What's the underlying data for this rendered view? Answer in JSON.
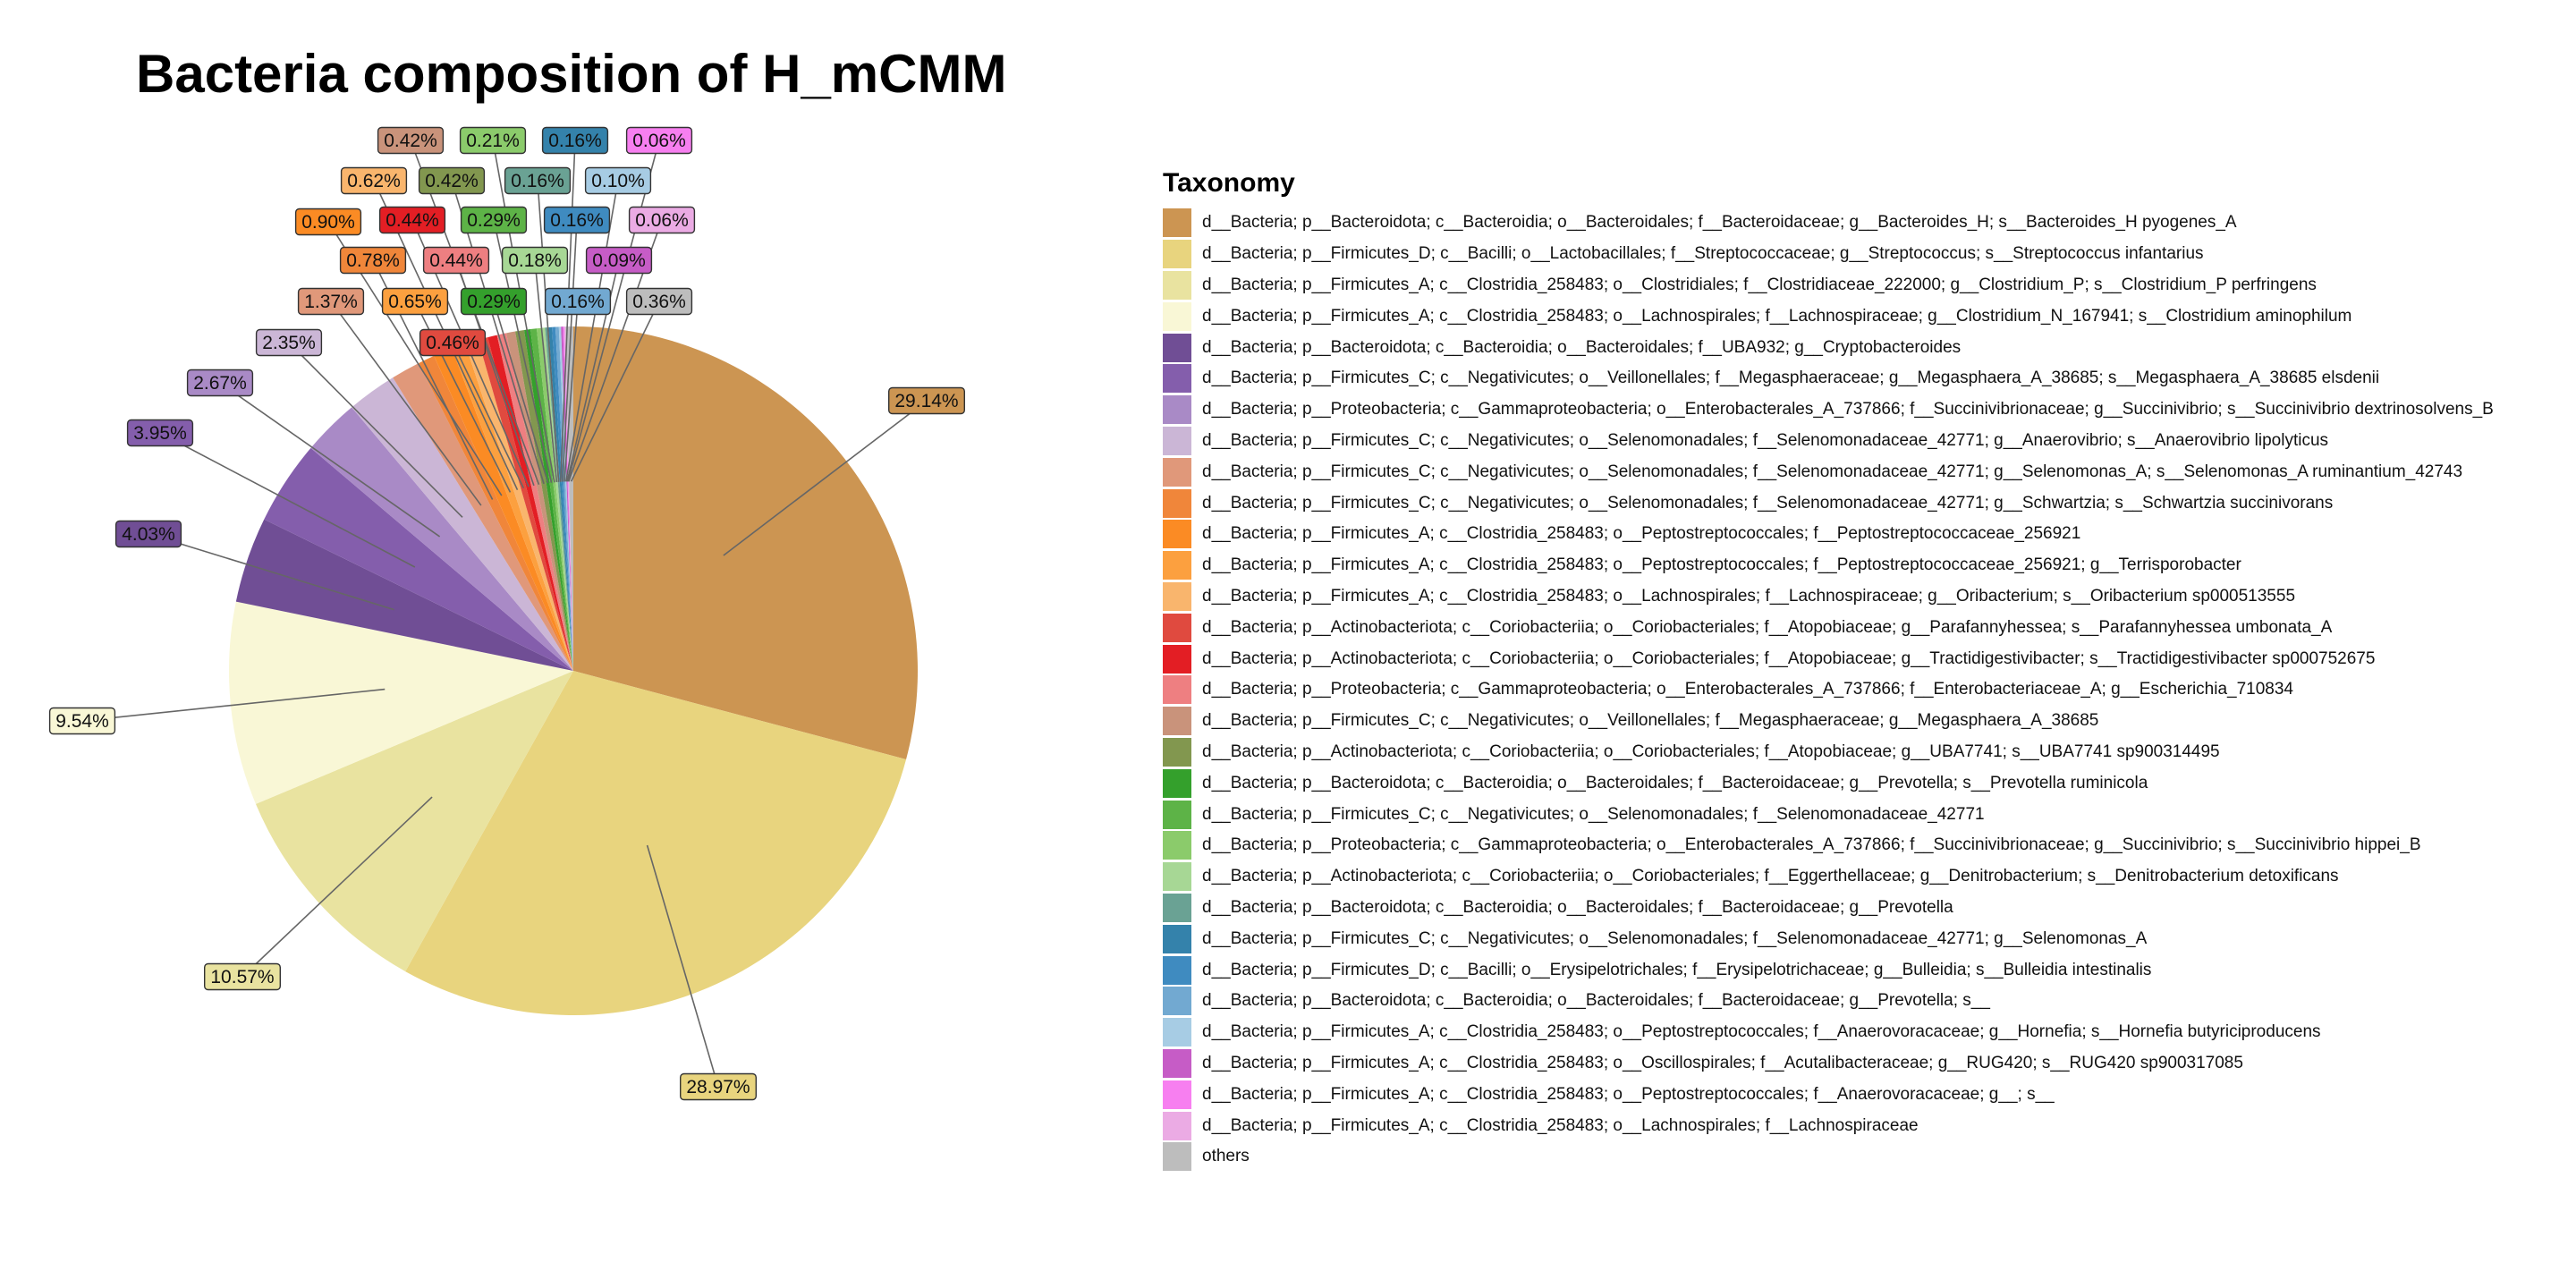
{
  "chart_data": {
    "type": "pie",
    "title": "Bacteria composition of H_mCMM",
    "legend_title": "Taxonomy",
    "legend_position": "right",
    "slices": [
      {
        "label": "d__Bacteria; p__Bacteroidota; c__Bacteroidia; o__Bacteroidales; f__Bacteroidaceae; g__Bacteroides_H; s__Bacteroides_H pyogenes_A",
        "value": 29.14,
        "display": "29.14%",
        "color": "#CC9552"
      },
      {
        "label": "d__Bacteria; p__Firmicutes_D; c__Bacilli; o__Lactobacillales; f__Streptococcaceae; g__Streptococcus; s__Streptococcus infantarius",
        "value": 28.97,
        "display": "28.97%",
        "color": "#E8D47E"
      },
      {
        "label": "d__Bacteria; p__Firmicutes_A; c__Clostridia_258483; o__Clostridiales; f__Clostridiaceae_222000; g__Clostridium_P; s__Clostridium_P perfringens",
        "value": 10.57,
        "display": "10.57%",
        "color": "#E9E3A0"
      },
      {
        "label": "d__Bacteria; p__Firmicutes_A; c__Clostridia_258483; o__Lachnospirales; f__Lachnospiraceae; g__Clostridium_N_167941; s__Clostridium aminophilum",
        "value": 9.54,
        "display": "9.54%",
        "color": "#F9F7D6"
      },
      {
        "label": "d__Bacteria; p__Bacteroidota; c__Bacteroidia; o__Bacteroidales; f__UBA932; g__Cryptobacteroides",
        "value": 4.03,
        "display": "4.03%",
        "color": "#704E95"
      },
      {
        "label": "d__Bacteria; p__Firmicutes_C; c__Negativicutes; o__Veillonellales; f__Megasphaeraceae; g__Megasphaera_A_38685; s__Megasphaera_A_38685 elsdenii",
        "value": 3.95,
        "display": "3.95%",
        "color": "#845EAC"
      },
      {
        "label": "d__Bacteria; p__Proteobacteria; c__Gammaproteobacteria; o__Enterobacterales_A_737866; f__Succinivibrionaceae; g__Succinivibrio; s__Succinivibrio dextrinosolvens_B",
        "value": 2.67,
        "display": "2.67%",
        "color": "#A98AC6"
      },
      {
        "label": "d__Bacteria; p__Firmicutes_C; c__Negativicutes; o__Selenomonadales; f__Selenomonadaceae_42771; g__Anaerovibrio; s__Anaerovibrio lipolyticus",
        "value": 2.35,
        "display": "2.35%",
        "color": "#CBB6D6"
      },
      {
        "label": "d__Bacteria; p__Firmicutes_C; c__Negativicutes; o__Selenomonadales; f__Selenomonadaceae_42771; g__Selenomonas_A; s__Selenomonas_A ruminantium_42743",
        "value": 1.37,
        "display": "1.37%",
        "color": "#E0987A"
      },
      {
        "label": "d__Bacteria; p__Firmicutes_C; c__Negativicutes; o__Selenomonadales; f__Selenomonadaceae_42771; g__Schwartzia; s__Schwartzia succinivorans",
        "value": 0.78,
        "display": "0.78%",
        "color": "#F0863A"
      },
      {
        "label": "d__Bacteria; p__Firmicutes_A; c__Clostridia_258483; o__Peptostreptococcales; f__Peptostreptococcaceae_256921",
        "value": 0.9,
        "display": "0.90%",
        "color": "#FB8B24"
      },
      {
        "label": "d__Bacteria; p__Firmicutes_A; c__Clostridia_258483; o__Peptostreptococcales; f__Peptostreptococcaceae_256921; g__Terrisporobacter",
        "value": 0.65,
        "display": "0.65%",
        "color": "#FCA03F"
      },
      {
        "label": "d__Bacteria; p__Firmicutes_A; c__Clostridia_258483; o__Lachnospirales; f__Lachnospiraceae; g__Oribacterium; s__Oribacterium sp000513555",
        "value": 0.62,
        "display": "0.62%",
        "color": "#F9B56D"
      },
      {
        "label": "d__Bacteria; p__Actinobacteriota; c__Coriobacteriia; o__Coriobacteriales; f__Atopobiaceae; g__Parafannyhessea; s__Parafannyhessea umbonata_A",
        "value": 0.46,
        "display": "0.46%",
        "color": "#E04A3F"
      },
      {
        "label": "d__Bacteria; p__Actinobacteriota; c__Coriobacteriia; o__Coriobacteriales; f__Atopobiaceae; g__Tractidigestivibacter; s__Tractidigestivibacter sp000752675",
        "value": 0.44,
        "display": "0.44%",
        "color": "#E31E24"
      },
      {
        "label": "d__Bacteria; p__Proteobacteria; c__Gammaproteobacteria; o__Enterobacterales_A_737866; f__Enterobacteriaceae_A; g__Escherichia_710834",
        "value": 0.44,
        "display": "0.44%",
        "color": "#EE7F81"
      },
      {
        "label": "d__Bacteria; p__Firmicutes_C; c__Negativicutes; o__Veillonellales; f__Megasphaeraceae; g__Megasphaera_A_38685",
        "value": 0.42,
        "display": "0.42%",
        "color": "#C9937B"
      },
      {
        "label": "d__Bacteria; p__Actinobacteriota; c__Coriobacteriia; o__Coriobacteriales; f__Atopobiaceae; g__UBA7741; s__UBA7741 sp900314495",
        "value": 0.42,
        "display": "0.42%",
        "color": "#82974F"
      },
      {
        "label": "d__Bacteria; p__Bacteroidota; c__Bacteroidia; o__Bacteroidales; f__Bacteroidaceae; g__Prevotella; s__Prevotella ruminicola",
        "value": 0.29,
        "display": "0.29%",
        "color": "#34A02C"
      },
      {
        "label": "d__Bacteria; p__Firmicutes_C; c__Negativicutes; o__Selenomonadales; f__Selenomonadaceae_42771",
        "value": 0.29,
        "display": "0.29%",
        "color": "#5DB347"
      },
      {
        "label": "d__Bacteria; p__Proteobacteria; c__Gammaproteobacteria; o__Enterobacterales_A_737866; f__Succinivibrionaceae; g__Succinivibrio; s__Succinivibrio hippei_B",
        "value": 0.21,
        "display": "0.21%",
        "color": "#8BCB6B"
      },
      {
        "label": "d__Bacteria; p__Actinobacteriota; c__Coriobacteriia; o__Coriobacteriales; f__Eggerthellaceae; g__Denitrobacterium; s__Denitrobacterium detoxificans",
        "value": 0.18,
        "display": "0.18%",
        "color": "#A7D795"
      },
      {
        "label": "d__Bacteria; p__Bacteroidota; c__Bacteroidia; o__Bacteroidales; f__Bacteroidaceae; g__Prevotella",
        "value": 0.16,
        "display": "0.16%",
        "color": "#6AA294"
      },
      {
        "label": "d__Bacteria; p__Firmicutes_C; c__Negativicutes; o__Selenomonadales; f__Selenomonadaceae_42771; g__Selenomonas_A",
        "value": 0.16,
        "display": "0.16%",
        "color": "#3482AB"
      },
      {
        "label": "d__Bacteria; p__Firmicutes_D; c__Bacilli; o__Erysipelotrichales; f__Erysipelotrichaceae; g__Bulleidia; s__Bulleidia intestinalis",
        "value": 0.16,
        "display": "0.16%",
        "color": "#3F8BC0"
      },
      {
        "label": "d__Bacteria; p__Bacteroidota; c__Bacteroidia; o__Bacteroidales; f__Bacteroidaceae; g__Prevotella; s__",
        "value": 0.16,
        "display": "0.16%",
        "color": "#72A9D1"
      },
      {
        "label": "d__Bacteria; p__Firmicutes_A; c__Clostridia_258483; o__Peptostreptococcales; f__Anaerovoracaceae; g__Hornefia; s__Hornefia butyriciproducens",
        "value": 0.1,
        "display": "0.10%",
        "color": "#A7CCE4"
      },
      {
        "label": "d__Bacteria; p__Firmicutes_A; c__Clostridia_258483; o__Oscillospirales; f__Acutalibacteraceae; g__RUG420; s__RUG420 sp900317085",
        "value": 0.09,
        "display": "0.09%",
        "color": "#C65CC6"
      },
      {
        "label": "d__Bacteria; p__Firmicutes_A; c__Clostridia_258483; o__Peptostreptococcales; f__Anaerovoracaceae; g__; s__",
        "value": 0.06,
        "display": "0.06%",
        "color": "#F77FF0"
      },
      {
        "label": "d__Bacteria; p__Firmicutes_A; c__Clostridia_258483; o__Lachnospirales; f__Lachnospiraceae",
        "value": 0.06,
        "display": "0.06%",
        "color": "#EBABE4"
      },
      {
        "label": "others",
        "value": 0.36,
        "display": "0.36%",
        "color": "#BDBDBD"
      }
    ]
  }
}
